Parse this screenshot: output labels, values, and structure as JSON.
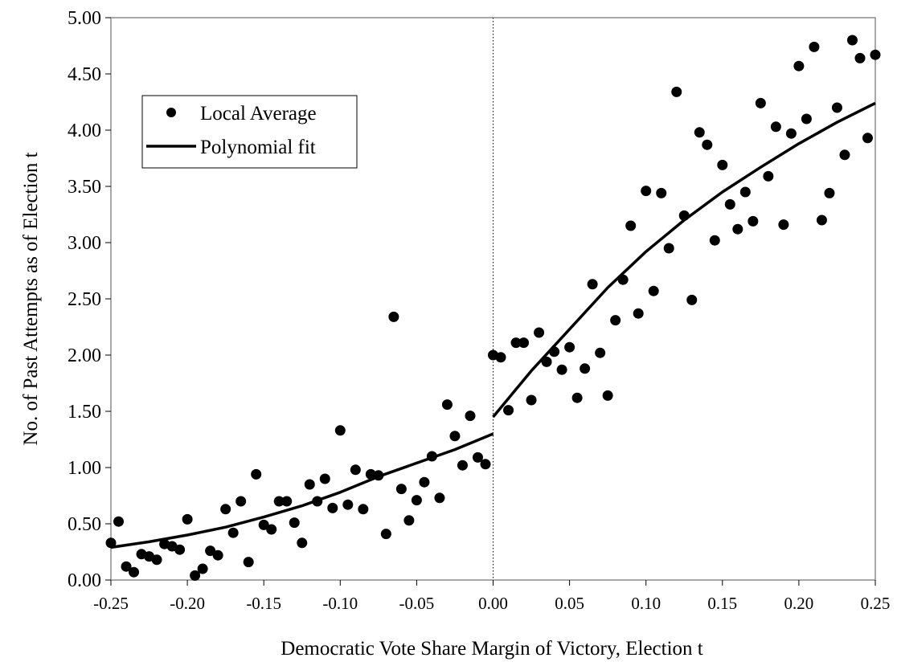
{
  "chart_data": {
    "type": "scatter",
    "title": "",
    "xlabel": "Democratic Vote Share Margin of Victory, Election t",
    "ylabel": "No. of Past Attempts as of Election t",
    "xlim": [
      -0.25,
      0.25
    ],
    "ylim": [
      0.0,
      5.0
    ],
    "x_ticks": [
      -0.25,
      -0.2,
      -0.15,
      -0.1,
      -0.05,
      0.0,
      0.05,
      0.1,
      0.15,
      0.2,
      0.25
    ],
    "x_tick_labels": [
      "-0.25",
      "-0.20",
      "-0.15",
      "-0.10",
      "-0.05",
      "0.00",
      "0.05",
      "0.10",
      "0.15",
      "0.20",
      "0.25"
    ],
    "y_ticks": [
      0,
      0.5,
      1.0,
      1.5,
      2.0,
      2.5,
      3.0,
      3.5,
      4.0,
      4.5,
      5.0
    ],
    "y_tick_labels": [
      "0.00",
      "0.50",
      "1.00",
      "1.50",
      "2.00",
      "2.50",
      "3.00",
      "3.50",
      "4.00",
      "4.50",
      "5.00"
    ],
    "grid": false,
    "cutoff_line_x": 0.0,
    "legend": {
      "position": "top-left",
      "entries": [
        "Local Average",
        "Polynomial fit"
      ]
    },
    "series": [
      {
        "name": "Local Average",
        "kind": "points",
        "color": "#000000",
        "x": [
          -0.25,
          -0.245,
          -0.24,
          -0.235,
          -0.23,
          -0.225,
          -0.22,
          -0.215,
          -0.21,
          -0.205,
          -0.2,
          -0.195,
          -0.19,
          -0.185,
          -0.18,
          -0.175,
          -0.17,
          -0.165,
          -0.16,
          -0.155,
          -0.15,
          -0.145,
          -0.14,
          -0.135,
          -0.13,
          -0.125,
          -0.12,
          -0.115,
          -0.11,
          -0.105,
          -0.1,
          -0.095,
          -0.09,
          -0.085,
          -0.08,
          -0.075,
          -0.07,
          -0.065,
          -0.06,
          -0.055,
          -0.05,
          -0.045,
          -0.04,
          -0.035,
          -0.03,
          -0.025,
          -0.02,
          -0.015,
          -0.01,
          -0.005,
          0.0,
          0.005,
          0.01,
          0.015,
          0.02,
          0.025,
          0.03,
          0.035,
          0.04,
          0.045,
          0.05,
          0.055,
          0.06,
          0.065,
          0.07,
          0.075,
          0.08,
          0.085,
          0.09,
          0.095,
          0.1,
          0.105,
          0.11,
          0.115,
          0.12,
          0.125,
          0.13,
          0.135,
          0.14,
          0.145,
          0.15,
          0.155,
          0.16,
          0.165,
          0.17,
          0.175,
          0.18,
          0.185,
          0.19,
          0.195,
          0.2,
          0.205,
          0.21,
          0.215,
          0.22,
          0.225,
          0.23,
          0.235,
          0.24,
          0.245,
          0.25
        ],
        "y": [
          0.33,
          0.52,
          0.12,
          0.07,
          0.23,
          0.21,
          0.18,
          0.32,
          0.3,
          0.27,
          0.54,
          0.04,
          0.1,
          0.26,
          0.22,
          0.63,
          0.42,
          0.7,
          0.16,
          0.94,
          0.49,
          0.45,
          0.7,
          0.7,
          0.51,
          0.33,
          0.85,
          0.7,
          0.9,
          0.64,
          1.33,
          0.67,
          0.98,
          0.63,
          0.94,
          0.93,
          0.41,
          2.34,
          0.81,
          0.53,
          0.71,
          0.87,
          1.1,
          0.73,
          1.56,
          1.28,
          1.02,
          1.46,
          1.09,
          1.03,
          2.0,
          1.98,
          1.51,
          2.11,
          2.11,
          1.6,
          2.2,
          1.94,
          2.03,
          1.87,
          2.07,
          1.62,
          1.88,
          2.63,
          2.02,
          1.64,
          2.31,
          2.67,
          3.15,
          2.37,
          3.46,
          2.57,
          3.44,
          2.95,
          4.34,
          3.24,
          2.49,
          3.98,
          3.87,
          3.02,
          3.69,
          3.34,
          3.12,
          3.45,
          3.19,
          4.24,
          3.59,
          4.03,
          3.16,
          3.97,
          4.57,
          4.1,
          4.74,
          3.2,
          3.44,
          4.2,
          3.78,
          4.8,
          4.64,
          3.93,
          4.67
        ]
      },
      {
        "name": "Polynomial fit",
        "kind": "line",
        "color": "#000000",
        "segments": [
          {
            "x": [
              -0.25,
              -0.225,
              -0.2,
              -0.175,
              -0.15,
              -0.125,
              -0.1,
              -0.075,
              -0.05,
              -0.025,
              0.0
            ],
            "y": [
              0.29,
              0.34,
              0.4,
              0.47,
              0.56,
              0.66,
              0.78,
              0.92,
              1.04,
              1.16,
              1.3
            ]
          },
          {
            "x": [
              0.0,
              0.025,
              0.05,
              0.075,
              0.1,
              0.125,
              0.15,
              0.175,
              0.2,
              0.225,
              0.25
            ],
            "y": [
              1.45,
              1.86,
              2.23,
              2.6,
              2.92,
              3.2,
              3.45,
              3.67,
              3.88,
              4.07,
              4.24
            ]
          }
        ]
      }
    ]
  }
}
